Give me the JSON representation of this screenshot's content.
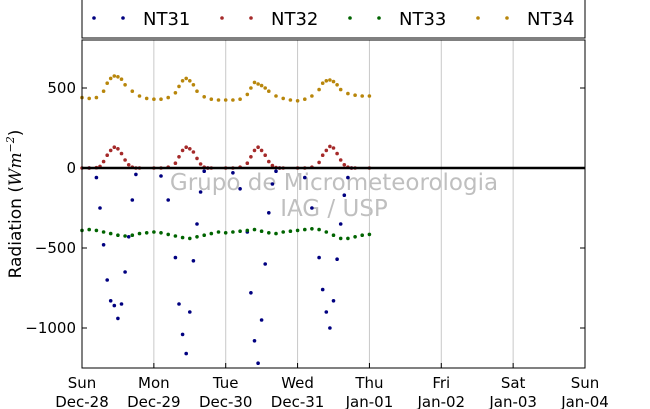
{
  "chart_data": {
    "type": "scatter",
    "ylabel": "Radiation (Wm$^{-2}$)",
    "ylabel_plain": "Radiation (",
    "ylabel_unit": "Wm",
    "ylabel_exp": "−2",
    "ylabel_close": ")",
    "xlim": [
      0,
      7
    ],
    "ylim": [
      -1250,
      800
    ],
    "yticks": [
      500,
      0,
      -500,
      -1000
    ],
    "ytick_labels": [
      "500",
      "0",
      "−500",
      "−1000"
    ],
    "xticks": [
      {
        "x": 0,
        "day": "Sun",
        "date": "Dec-28"
      },
      {
        "x": 1,
        "day": "Mon",
        "date": "Dec-29"
      },
      {
        "x": 2,
        "day": "Tue",
        "date": "Dec-30"
      },
      {
        "x": 3,
        "day": "Wed",
        "date": "Dec-31"
      },
      {
        "x": 4,
        "day": "Thu",
        "date": "Jan-01"
      },
      {
        "x": 5,
        "day": "Fri",
        "date": "Jan-02"
      },
      {
        "x": 6,
        "day": "Sat",
        "date": "Jan-03"
      },
      {
        "x": 7,
        "day": "Sun",
        "date": "Jan-04"
      }
    ],
    "grid": "vertical",
    "legend_position": "top",
    "zero_line": true,
    "watermark": [
      "Grupo de Micrometeorologia",
      "IAG / USP"
    ],
    "series": [
      {
        "name": "NT31",
        "color": "#000080",
        "x": [
          0.1,
          0.2,
          0.25,
          0.3,
          0.35,
          0.4,
          0.45,
          0.5,
          0.55,
          0.6,
          0.65,
          0.7,
          0.75,
          1.1,
          1.2,
          1.3,
          1.35,
          1.4,
          1.45,
          1.5,
          1.55,
          1.6,
          1.65,
          1.7,
          1.75,
          2.1,
          2.2,
          2.3,
          2.35,
          2.4,
          2.45,
          2.5,
          2.55,
          2.6,
          2.65,
          2.7,
          2.75,
          3.1,
          3.2,
          3.3,
          3.35,
          3.4,
          3.45,
          3.5,
          3.55,
          3.6,
          3.65,
          3.7,
          3.75
        ],
        "y": [
          0,
          -60,
          -250,
          -480,
          -700,
          -830,
          -860,
          -940,
          -850,
          -650,
          -430,
          -200,
          -40,
          -50,
          -200,
          -560,
          -850,
          -1040,
          -1160,
          -900,
          -580,
          -350,
          -150,
          -20,
          0,
          -30,
          -130,
          -400,
          -780,
          -1080,
          -1220,
          -950,
          -600,
          -280,
          -100,
          -20,
          0,
          -60,
          -250,
          -560,
          -760,
          -900,
          -1000,
          -830,
          -570,
          -350,
          -170,
          -60,
          0
        ]
      },
      {
        "name": "NT32",
        "color": "#a52a2a",
        "x": [
          0,
          0.1,
          0.2,
          0.25,
          0.3,
          0.35,
          0.4,
          0.45,
          0.5,
          0.55,
          0.6,
          0.65,
          0.7,
          0.75,
          0.8,
          1.0,
          1.1,
          1.2,
          1.3,
          1.35,
          1.4,
          1.45,
          1.5,
          1.55,
          1.6,
          1.65,
          1.7,
          1.75,
          1.8,
          2.0,
          2.1,
          2.2,
          2.3,
          2.35,
          2.4,
          2.45,
          2.5,
          2.55,
          2.6,
          2.65,
          2.7,
          2.75,
          2.8,
          3.0,
          3.1,
          3.2,
          3.3,
          3.35,
          3.4,
          3.45,
          3.5,
          3.55,
          3.6,
          3.65,
          3.7,
          3.75,
          3.8,
          4.0
        ],
        "y": [
          0,
          0,
          2,
          10,
          40,
          80,
          110,
          130,
          120,
          90,
          50,
          20,
          5,
          0,
          0,
          0,
          0,
          5,
          30,
          70,
          110,
          130,
          120,
          100,
          60,
          25,
          5,
          0,
          0,
          0,
          0,
          5,
          30,
          70,
          110,
          130,
          110,
          80,
          40,
          15,
          3,
          0,
          0,
          0,
          0,
          5,
          35,
          80,
          110,
          135,
          125,
          90,
          50,
          20,
          5,
          0,
          0,
          0
        ]
      },
      {
        "name": "NT33",
        "color": "#006400",
        "x": [
          0,
          0.1,
          0.2,
          0.3,
          0.4,
          0.5,
          0.6,
          0.7,
          0.8,
          0.9,
          1.0,
          1.1,
          1.2,
          1.3,
          1.4,
          1.5,
          1.6,
          1.7,
          1.8,
          1.9,
          2.0,
          2.1,
          2.2,
          2.3,
          2.4,
          2.5,
          2.6,
          2.7,
          2.8,
          2.9,
          3.0,
          3.1,
          3.2,
          3.3,
          3.4,
          3.5,
          3.6,
          3.7,
          3.8,
          3.9,
          4.0
        ],
        "y": [
          -390,
          -385,
          -390,
          -400,
          -410,
          -420,
          -425,
          -420,
          -410,
          -405,
          -400,
          -405,
          -415,
          -425,
          -435,
          -440,
          -430,
          -420,
          -410,
          -400,
          -405,
          -400,
          -395,
          -390,
          -385,
          -395,
          -405,
          -410,
          -400,
          -395,
          -390,
          -385,
          -380,
          -385,
          -400,
          -420,
          -440,
          -440,
          -430,
          -420,
          -415
        ]
      },
      {
        "name": "NT34",
        "color": "#b8860b",
        "x": [
          0,
          0.1,
          0.2,
          0.3,
          0.35,
          0.4,
          0.45,
          0.5,
          0.55,
          0.6,
          0.7,
          0.8,
          0.9,
          1.0,
          1.1,
          1.2,
          1.3,
          1.35,
          1.4,
          1.45,
          1.5,
          1.55,
          1.6,
          1.7,
          1.8,
          1.9,
          2.0,
          2.1,
          2.2,
          2.3,
          2.35,
          2.4,
          2.45,
          2.5,
          2.55,
          2.6,
          2.7,
          2.8,
          2.9,
          3.0,
          3.1,
          3.2,
          3.3,
          3.35,
          3.4,
          3.45,
          3.5,
          3.55,
          3.6,
          3.7,
          3.8,
          3.9,
          4.0
        ],
        "y": [
          440,
          435,
          440,
          480,
          530,
          560,
          575,
          570,
          555,
          520,
          480,
          450,
          435,
          430,
          430,
          440,
          470,
          510,
          545,
          560,
          545,
          520,
          480,
          445,
          430,
          425,
          425,
          425,
          430,
          460,
          500,
          535,
          525,
          515,
          500,
          480,
          450,
          435,
          425,
          420,
          430,
          450,
          490,
          530,
          545,
          550,
          540,
          520,
          490,
          465,
          455,
          450,
          450
        ]
      }
    ]
  }
}
